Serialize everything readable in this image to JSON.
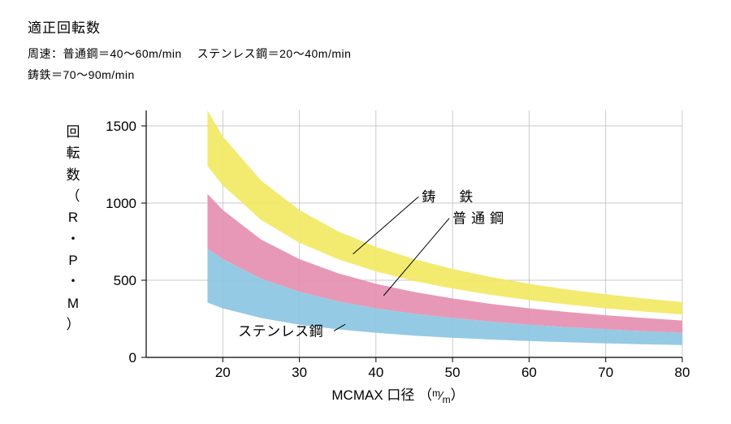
{
  "title": "適正回転数",
  "subtitle_line1": "周速：普通鋼＝40〜60m/min　 ステンレス鋼＝20〜40m/min",
  "subtitle_line2": "鋳鉄＝70〜90m/min",
  "chart": {
    "type": "area-band",
    "background_color": "#ffffff",
    "axis_color": "#000000",
    "grid_color": "#b7b7b7",
    "grid_width": 0.7,
    "axis_width": 1.2,
    "xlabel_prefix": "MCMAX 口径",
    "xlabel_unit_html": "（m⁄m）",
    "ylabel_chars": [
      "回",
      "転",
      "数",
      "（",
      "R",
      "・",
      "P",
      "・",
      "M",
      "）"
    ],
    "xlim": [
      10,
      80
    ],
    "ylim": [
      0,
      1600
    ],
    "xticks": [
      20,
      30,
      40,
      50,
      60,
      70,
      80
    ],
    "yticks": [
      0,
      500,
      1000,
      1500
    ],
    "tick_fontsize": 17,
    "label_fontsize": 17,
    "series": [
      {
        "name": "cast-iron",
        "label": "鋳　鉄",
        "label_mode": "spaced",
        "color": "#f2e968",
        "opacity": 0.95,
        "x": [
          18,
          20,
          25,
          30,
          35,
          40,
          45,
          50,
          55,
          60,
          65,
          70,
          75,
          80
        ],
        "upper": [
          1600,
          1432,
          1146,
          955,
          818,
          716,
          637,
          573,
          521,
          477,
          440,
          409,
          382,
          358
        ],
        "lower": [
          1240,
          1115,
          891,
          743,
          637,
          557,
          495,
          446,
          405,
          371,
          343,
          318,
          297,
          278
        ],
        "callout": {
          "text_x": 46,
          "text_y": 1010,
          "line_to_x": 37,
          "line_to_y": 670
        }
      },
      {
        "name": "ordinary-steel",
        "label": "普通鋼",
        "label_mode": "spaced",
        "color": "#e58fb1",
        "opacity": 0.92,
        "x": [
          18,
          20,
          25,
          30,
          35,
          40,
          45,
          50,
          55,
          60,
          65,
          70,
          75,
          80
        ],
        "upper": [
          1060,
          955,
          764,
          637,
          546,
          477,
          424,
          382,
          347,
          318,
          294,
          273,
          255,
          239
        ],
        "lower": [
          705,
          637,
          510,
          425,
          364,
          318,
          283,
          255,
          232,
          212,
          196,
          182,
          170,
          159
        ],
        "callout": {
          "text_x": 50,
          "text_y": 870,
          "line_to_x": 41,
          "line_to_y": 400
        }
      },
      {
        "name": "stainless-steel",
        "label": "ステンレス鋼",
        "label_mode": "tight",
        "color": "#8cc5e3",
        "opacity": 0.92,
        "x": [
          18,
          20,
          25,
          30,
          35,
          40,
          45,
          50,
          55,
          60,
          65,
          70,
          75,
          80
        ],
        "upper": [
          705,
          637,
          510,
          425,
          364,
          318,
          283,
          255,
          232,
          212,
          196,
          182,
          170,
          159
        ],
        "lower": [
          355,
          318,
          255,
          212,
          182,
          159,
          141,
          127,
          116,
          106,
          98,
          91,
          85,
          80
        ],
        "callout": {
          "text_x": 22,
          "text_y": 140,
          "line_to_x": 36,
          "line_to_y": 215
        }
      }
    ]
  }
}
